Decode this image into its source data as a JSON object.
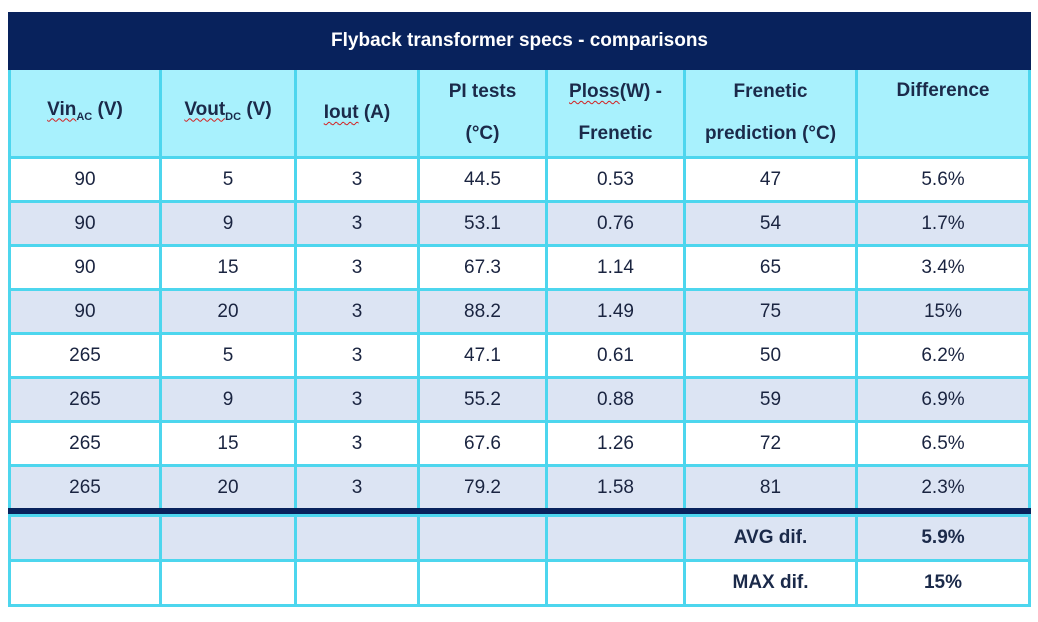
{
  "table": {
    "title": "Flyback transformer specs - comparisons",
    "headers": {
      "vin_main": "Vin",
      "vin_sub": "AC",
      "vin_unit": " (V)",
      "vout_main": "Vout",
      "vout_sub": "DC",
      "vout_unit": " (V)",
      "iout_main": "Iout",
      "iout_unit": " (A)",
      "pi_line1": "PI tests",
      "pi_line2": "(°C)",
      "ploss_main": "Ploss",
      "ploss_rest": "(W) -",
      "ploss_line2": "Frenetic",
      "frenetic_line1": "Frenetic",
      "frenetic_line2": "prediction (°C)",
      "difference": "Difference"
    },
    "rows": [
      [
        "90",
        "5",
        "3",
        "44.5",
        "0.53",
        "47",
        "5.6%"
      ],
      [
        "90",
        "9",
        "3",
        "53.1",
        "0.76",
        "54",
        "1.7%"
      ],
      [
        "90",
        "15",
        "3",
        "67.3",
        "1.14",
        "65",
        "3.4%"
      ],
      [
        "90",
        "20",
        "3",
        "88.2",
        "1.49",
        "75",
        "15%"
      ],
      [
        "265",
        "5",
        "3",
        "47.1",
        "0.61",
        "50",
        "6.2%"
      ],
      [
        "265",
        "9",
        "3",
        "55.2",
        "0.88",
        "59",
        "6.9%"
      ],
      [
        "265",
        "15",
        "3",
        "67.6",
        "1.26",
        "72",
        "6.5%"
      ],
      [
        "265",
        "20",
        "3",
        "79.2",
        "1.58",
        "81",
        "2.3%"
      ]
    ],
    "summary": {
      "avg_label": "AVG dif.",
      "avg_value": "5.9%",
      "max_label": "MAX dif.",
      "max_value": "15%"
    }
  },
  "colors": {
    "title_bg": "#08225c",
    "header_bg": "#a8f1fd",
    "stripe_bg": "#dce4f3",
    "border": "#4dd6ee"
  }
}
